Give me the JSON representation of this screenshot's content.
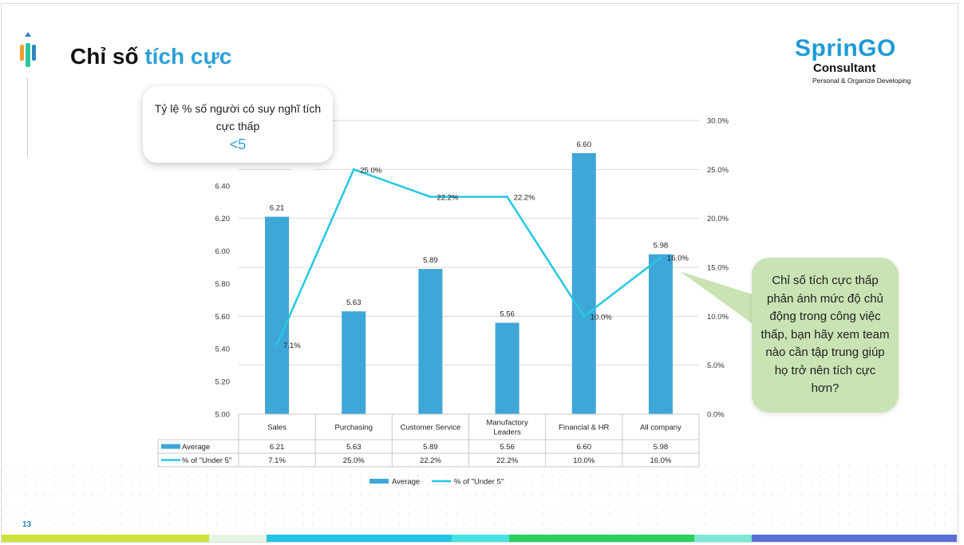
{
  "slide": {
    "title_plain": "Chỉ số ",
    "title_accent": "tích cực",
    "page_number": "13"
  },
  "brand": {
    "name": "SprinGO",
    "subtitle": "Consultant",
    "tagline": "Personal & Organize Developing"
  },
  "callout": {
    "text": "Tỷ lệ % số người có suy nghĩ tích cực thấp",
    "value": "<5"
  },
  "note": {
    "text": "Chỉ số tích cực thấp phản ánh mức độ chủ động trong công việc thấp, bạn hãy xem team nào cần tập trung giúp họ trở nên tích cực hơn?"
  },
  "colors": {
    "bar": "#3fa6d8",
    "line": "#25c8e0",
    "accent": "#2e9fd8",
    "note_bg": "#c9e3b4"
  },
  "chart_data": {
    "type": "bar",
    "categories": [
      "Sales",
      "Purchasing",
      "Customer Service",
      "Manufactory Leaders",
      "Financial & HR",
      "All company"
    ],
    "category_lines": [
      [
        "Sales"
      ],
      [
        "Purchasing"
      ],
      [
        "Customer Service"
      ],
      [
        "Manufactory",
        "Leaders"
      ],
      [
        "Financial & HR"
      ],
      [
        "All company"
      ]
    ],
    "series": [
      {
        "name": "Average",
        "type": "bar",
        "axis": "left",
        "values": [
          6.21,
          5.63,
          5.89,
          5.56,
          6.6,
          5.98
        ],
        "labels": [
          "6.21",
          "5.63",
          "5.89",
          "5.56",
          "6.60",
          "5.98"
        ]
      },
      {
        "name": "% of \"Under 5\"",
        "type": "line",
        "axis": "right",
        "values": [
          7.1,
          25.0,
          22.2,
          22.2,
          10.0,
          16.0
        ],
        "labels": [
          "7.1%",
          "25.0%",
          "22.2%",
          "22.2%",
          "10.0%",
          "16.0%"
        ]
      }
    ],
    "left_axis": {
      "min": 5.0,
      "max": 6.8,
      "ticks": [
        "5.00",
        "5.20",
        "5.40",
        "5.60",
        "5.80",
        "6.00",
        "6.20",
        "6.40"
      ]
    },
    "right_axis": {
      "min": 0,
      "max": 30,
      "ticks": [
        "0.0%",
        "5.0%",
        "10.0%",
        "15.0%",
        "20.0%",
        "25.0%",
        "30.0%"
      ]
    },
    "legend": "bottom",
    "data_table": true
  },
  "bottom_bar": [
    "#cfe23a",
    "#e6f5e6",
    "#23c4e6",
    "#47e3e3",
    "#28d05a",
    "#7ee8d6",
    "#5a6fd6"
  ]
}
